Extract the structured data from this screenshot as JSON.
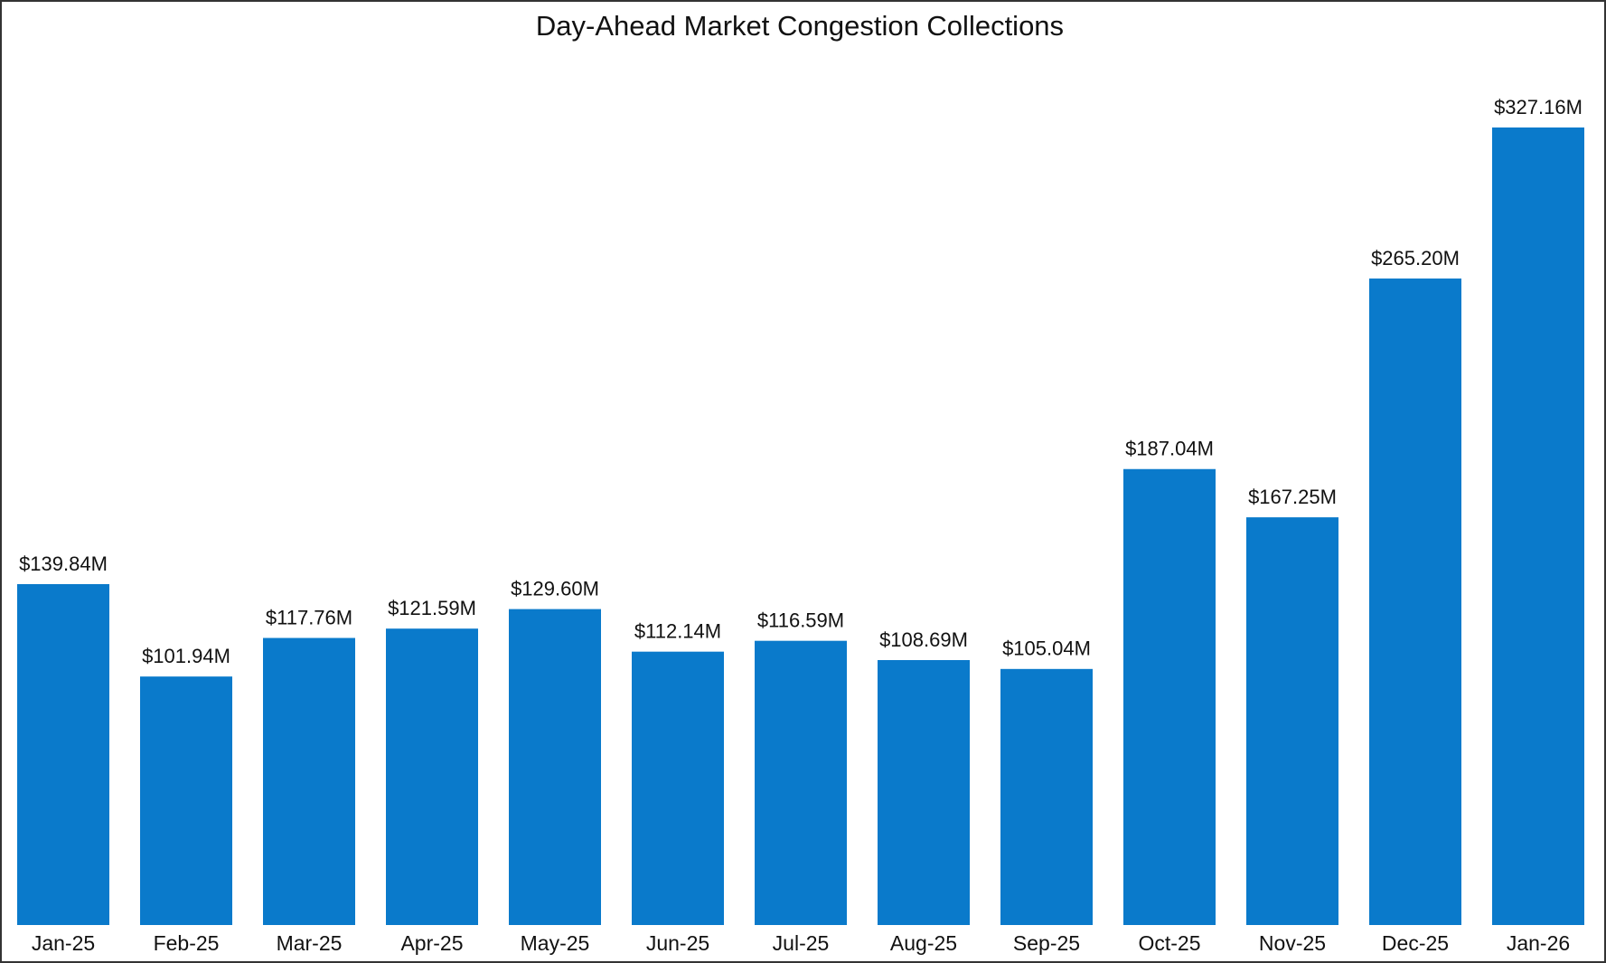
{
  "chart_data": {
    "type": "bar",
    "title": "Day-Ahead Market Congestion Collections",
    "categories": [
      "Jan-25",
      "Feb-25",
      "Mar-25",
      "Apr-25",
      "May-25",
      "Jun-25",
      "Jul-25",
      "Aug-25",
      "Sep-25",
      "Oct-25",
      "Nov-25",
      "Dec-25",
      "Jan-26"
    ],
    "values": [
      139.84,
      101.94,
      117.76,
      121.59,
      129.6,
      112.14,
      116.59,
      108.69,
      105.04,
      187.04,
      167.25,
      265.2,
      327.16
    ],
    "value_labels": [
      "$139.84M",
      "$101.94M",
      "$117.76M",
      "$121.59M",
      "$129.60M",
      "$112.14M",
      "$116.59M",
      "$108.69M",
      "$105.04M",
      "$187.04M",
      "$167.25M",
      "$265.20M",
      "$327.16M"
    ],
    "color": "#0a7acb"
  }
}
